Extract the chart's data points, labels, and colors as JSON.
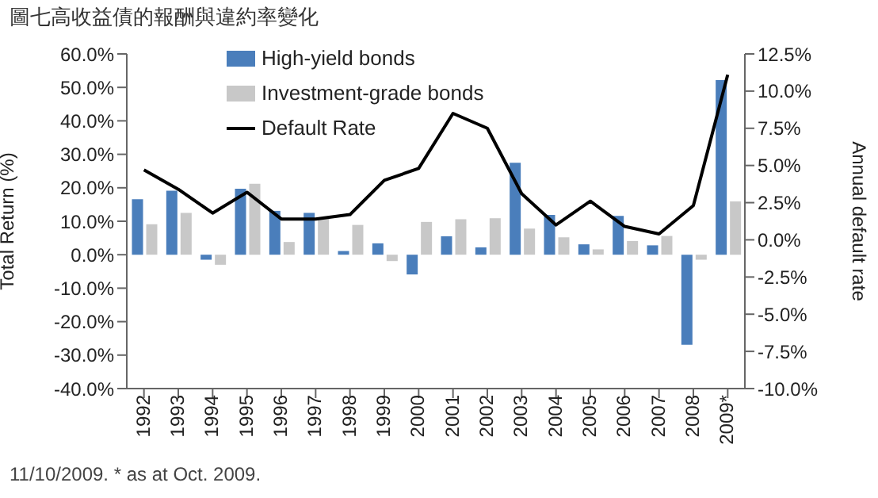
{
  "chart_data": {
    "type": "bar",
    "title": "圖七高收益債的報酬與違約率變化",
    "ylabel": "Total Return (%)",
    "y2label": "Annual default rate",
    "categories": [
      "1992",
      "1993",
      "1994",
      "1995",
      "1996",
      "1997",
      "1998",
      "1999",
      "2000",
      "2001",
      "2002",
      "2003",
      "2004",
      "2005",
      "2006",
      "2007",
      "2008",
      "2009*"
    ],
    "series": [
      {
        "name": "High-yield bonds",
        "color": "#4a7ebb",
        "values": [
          16.6,
          19.1,
          -1.5,
          19.7,
          13.1,
          12.5,
          1.1,
          3.4,
          -5.9,
          5.5,
          2.2,
          27.5,
          11.9,
          3.1,
          11.6,
          2.8,
          -26.9,
          52.2
        ]
      },
      {
        "name": "Investment-grade bonds",
        "color": "#c8c8c8",
        "values": [
          9.1,
          12.5,
          -3.0,
          21.2,
          3.8,
          10.9,
          8.9,
          -1.9,
          9.8,
          10.6,
          10.9,
          7.8,
          5.2,
          1.6,
          4.1,
          5.6,
          -1.5,
          15.9
        ]
      },
      {
        "name": "Default Rate",
        "color": "#000000",
        "type": "line",
        "axis": "y2",
        "values": [
          4.7,
          3.4,
          1.8,
          3.2,
          1.4,
          1.4,
          1.7,
          4.0,
          4.8,
          8.5,
          7.5,
          3.1,
          1.0,
          2.6,
          0.9,
          0.4,
          2.3,
          11.1
        ]
      }
    ],
    "ylim": [
      -40,
      60
    ],
    "yticks": [
      {
        "value": -40,
        "label": "-40.0%"
      },
      {
        "value": -30,
        "label": "-30.0%"
      },
      {
        "value": -20,
        "label": "-20.0%"
      },
      {
        "value": -10,
        "label": "-10.0%"
      },
      {
        "value": 0,
        "label": "0.0%"
      },
      {
        "value": 10,
        "label": "10.0%"
      },
      {
        "value": 20,
        "label": "20.0%"
      },
      {
        "value": 30,
        "label": "30.0%"
      },
      {
        "value": 40,
        "label": "40.0%"
      },
      {
        "value": 50,
        "label": "50.0%"
      },
      {
        "value": 60,
        "label": "60.0%"
      }
    ],
    "y2lim": [
      -10,
      12.5
    ],
    "y2ticks": [
      {
        "value": -10,
        "label": "-10.0%"
      },
      {
        "value": -7.5,
        "label": "-7.5%"
      },
      {
        "value": -5,
        "label": "-5.0%"
      },
      {
        "value": -2.5,
        "label": "-2.5%"
      },
      {
        "value": 0,
        "label": "0.0%"
      },
      {
        "value": 2.5,
        "label": "2.5%"
      },
      {
        "value": 5,
        "label": "5.0%"
      },
      {
        "value": 7.5,
        "label": "7.5%"
      },
      {
        "value": 10,
        "label": "10.0%"
      },
      {
        "value": 12.5,
        "label": "12.5%"
      }
    ],
    "legend": "top left",
    "grid": false,
    "marker": "none",
    "line_style": "solid",
    "annotations": [
      "11/10/2009. * as at Oct. 2009."
    ]
  }
}
